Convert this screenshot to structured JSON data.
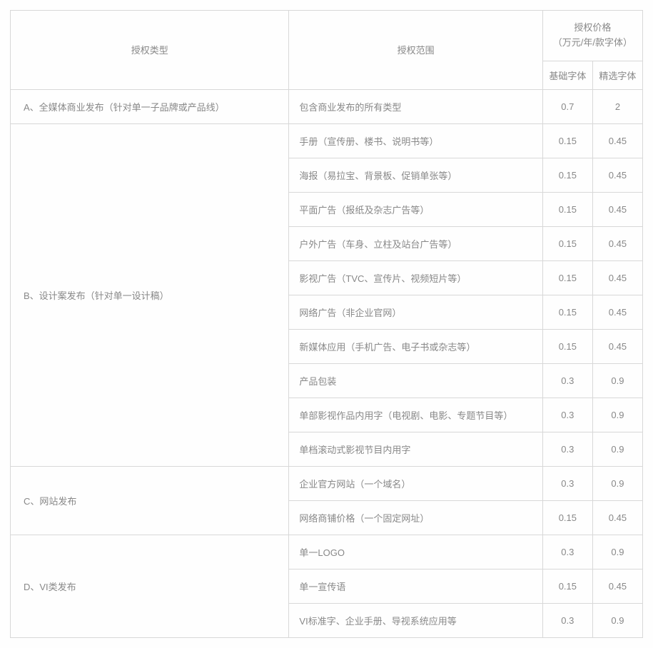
{
  "table": {
    "border_color": "#d8d8d8",
    "text_color": "#888888",
    "background_color": "#fefefe",
    "font_size": 13,
    "header": {
      "type": "授权类型",
      "scope": "授权范围",
      "price_group": "授权价格\n（万元/年/款字体）",
      "price_basic": "基础字体",
      "price_premium": "精选字体"
    },
    "columns": {
      "type_width": 390,
      "scope_width": 355,
      "price_width": 70
    },
    "sections": [
      {
        "type": "A、全媒体商业发布（针对单一子品牌或产品线）",
        "rows": [
          {
            "scope": "包含商业发布的所有类型",
            "basic": "0.7",
            "premium": "2"
          }
        ]
      },
      {
        "type": "B、设计案发布（针对单一设计稿）",
        "rows": [
          {
            "scope": "手册（宣传册、楼书、说明书等）",
            "basic": "0.15",
            "premium": "0.45"
          },
          {
            "scope": "海报（易拉宝、背景板、促销单张等）",
            "basic": "0.15",
            "premium": "0.45"
          },
          {
            "scope": "平面广告（报纸及杂志广告等）",
            "basic": "0.15",
            "premium": "0.45"
          },
          {
            "scope": "户外广告（车身、立柱及站台广告等）",
            "basic": "0.15",
            "premium": "0.45"
          },
          {
            "scope": "影视广告（TVC、宣传片、视频短片等）",
            "basic": "0.15",
            "premium": "0.45"
          },
          {
            "scope": "网络广告（非企业官网）",
            "basic": "0.15",
            "premium": "0.45"
          },
          {
            "scope": "新媒体应用（手机广告、电子书或杂志等）",
            "basic": "0.15",
            "premium": "0.45"
          },
          {
            "scope": "产品包装",
            "basic": "0.3",
            "premium": "0.9"
          },
          {
            "scope": "单部影视作品内用字（电视剧、电影、专题节目等）",
            "basic": "0.3",
            "premium": "0.9"
          },
          {
            "scope": "单档滚动式影视节目内用字",
            "basic": "0.3",
            "premium": "0.9"
          }
        ]
      },
      {
        "type": "C、网站发布",
        "rows": [
          {
            "scope": "企业官方网站（一个域名）",
            "basic": "0.3",
            "premium": "0.9"
          },
          {
            "scope": "网络商铺价格（一个固定网址）",
            "basic": "0.15",
            "premium": "0.45"
          }
        ]
      },
      {
        "type": "D、VI类发布",
        "rows": [
          {
            "scope": "单一LOGO",
            "basic": "0.3",
            "premium": "0.9"
          },
          {
            "scope": "单一宣传语",
            "basic": "0.15",
            "premium": "0.45"
          },
          {
            "scope": "VI标准字、企业手册、导视系统应用等",
            "basic": "0.3",
            "premium": "0.9"
          }
        ]
      }
    ]
  }
}
